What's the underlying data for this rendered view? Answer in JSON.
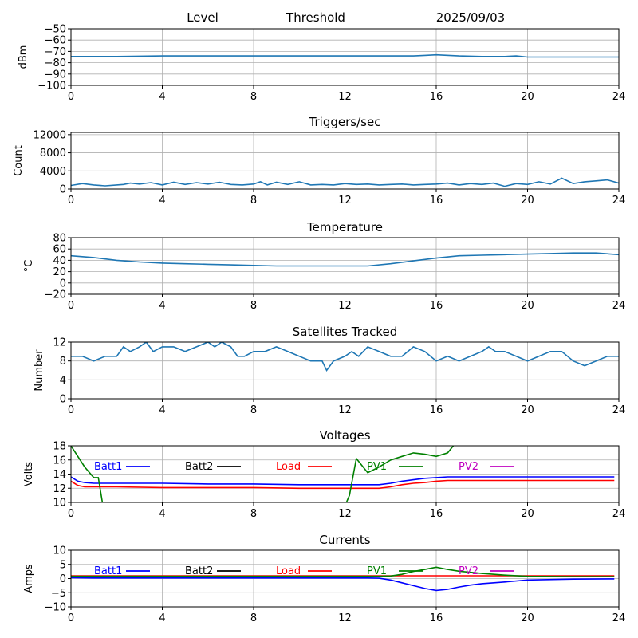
{
  "header": {
    "level": "Level",
    "threshold": "Threshold",
    "date": "2025/09/03"
  },
  "colors": {
    "series": "#1f77b4",
    "grid": "#b0b0b0",
    "Batt1": "#0000ff",
    "Batt2": "#000000",
    "Load": "#ff0000",
    "PV1": "#008000",
    "PV2": "#c000c0"
  },
  "chart_data": [
    {
      "type": "line",
      "title": "",
      "ylabel": "dBm",
      "xlim": [
        0,
        24
      ],
      "ylim": [
        -100,
        -50
      ],
      "xticks": [
        0,
        4,
        8,
        12,
        16,
        20,
        24
      ],
      "yticks": [
        -50,
        -60,
        -70,
        -80,
        -90,
        -100
      ],
      "x": [
        0,
        2,
        4,
        6,
        8,
        10,
        12,
        13,
        14,
        15,
        15.5,
        16,
        17,
        18,
        19,
        19.5,
        20,
        21,
        22,
        23,
        24
      ],
      "series": [
        {
          "values": [
            -74.5,
            -74.5,
            -74,
            -74,
            -74,
            -74,
            -74,
            -74,
            -74,
            -74,
            -73.5,
            -73,
            -74,
            -74.5,
            -74.5,
            -74,
            -75,
            -75,
            -75,
            -75,
            -75
          ]
        }
      ]
    },
    {
      "type": "line",
      "title": "Triggers/sec",
      "ylabel": "Count",
      "xlim": [
        0,
        24
      ],
      "ylim": [
        0,
        12500
      ],
      "xticks": [
        0,
        4,
        8,
        12,
        16,
        20,
        24
      ],
      "yticks": [
        0,
        4000,
        8000,
        12000
      ],
      "x": [
        0,
        0.5,
        1,
        1.5,
        2,
        2.3,
        2.6,
        3,
        3.5,
        4,
        4.5,
        5,
        5.5,
        6,
        6.5,
        7,
        7.5,
        8,
        8.3,
        8.6,
        9,
        9.5,
        10,
        10.5,
        11,
        11.5,
        12,
        12.5,
        13,
        13.5,
        14,
        14.5,
        15,
        15.5,
        16,
        16.5,
        17,
        17.5,
        18,
        18.5,
        19,
        19.5,
        20,
        20.5,
        21,
        21.5,
        22,
        22.5,
        23,
        23.5,
        24
      ],
      "series": [
        {
          "values": [
            800,
            1200,
            900,
            700,
            900,
            1000,
            1300,
            1100,
            1400,
            900,
            1500,
            1000,
            1400,
            1100,
            1500,
            1000,
            900,
            1100,
            1600,
            900,
            1500,
            1000,
            1600,
            900,
            1000,
            900,
            1200,
            1000,
            1100,
            900,
            1000,
            1100,
            900,
            1000,
            1100,
            1300,
            900,
            1200,
            1000,
            1300,
            600,
            1200,
            1000,
            1600,
            1100,
            2400,
            1200,
            1600,
            1800,
            2000,
            1300
          ]
        }
      ]
    },
    {
      "type": "line",
      "title": "Temperature",
      "ylabel": "°C",
      "xlim": [
        0,
        24
      ],
      "ylim": [
        -20,
        80
      ],
      "xticks": [
        0,
        4,
        8,
        12,
        16,
        20,
        24
      ],
      "yticks": [
        80,
        60,
        40,
        20,
        0,
        -20
      ],
      "x": [
        0,
        1,
        2,
        3,
        4,
        5,
        6,
        7,
        8,
        9,
        10,
        11,
        12,
        13,
        14,
        15,
        16,
        17,
        18,
        19,
        20,
        21,
        22,
        23,
        24
      ],
      "series": [
        {
          "values": [
            48,
            45,
            40,
            37,
            35,
            34,
            33,
            32,
            31,
            30,
            30,
            30,
            30,
            30,
            34,
            39,
            44,
            48,
            49,
            50,
            51,
            52,
            53,
            53,
            50
          ]
        }
      ]
    },
    {
      "type": "line",
      "title": "Satellites Tracked",
      "ylabel": "Number",
      "xlim": [
        0,
        24
      ],
      "ylim": [
        0,
        12
      ],
      "xticks": [
        0,
        4,
        8,
        12,
        16,
        20,
        24
      ],
      "yticks": [
        0,
        4,
        8,
        12
      ],
      "x": [
        0,
        0.5,
        1,
        1.5,
        2,
        2.3,
        2.6,
        3,
        3.3,
        3.6,
        4,
        4.5,
        5,
        5.5,
        6,
        6.3,
        6.6,
        7,
        7.3,
        7.6,
        8,
        8.5,
        9,
        9.5,
        10,
        10.5,
        11,
        11.2,
        11.5,
        12,
        12.3,
        12.6,
        13,
        13.5,
        14,
        14.5,
        15,
        15.5,
        16,
        16.5,
        17,
        17.5,
        18,
        18.3,
        18.6,
        19,
        19.5,
        20,
        20.5,
        21,
        21.5,
        22,
        22.5,
        23,
        23.5,
        24
      ],
      "series": [
        {
          "values": [
            9,
            9,
            8,
            9,
            9,
            11,
            10,
            11,
            12,
            10,
            11,
            11,
            10,
            11,
            12,
            11,
            12,
            11,
            9,
            9,
            10,
            10,
            11,
            10,
            9,
            8,
            8,
            6,
            8,
            9,
            10,
            9,
            11,
            10,
            9,
            9,
            11,
            10,
            8,
            9,
            8,
            9,
            10,
            11,
            10,
            10,
            9,
            8,
            9,
            10,
            10,
            8,
            7,
            8,
            9,
            9
          ]
        }
      ]
    },
    {
      "type": "line",
      "title": "Voltages",
      "ylabel": "Volts",
      "xlim": [
        0,
        24
      ],
      "ylim": [
        10,
        18
      ],
      "xticks": [
        0,
        4,
        8,
        12,
        16,
        20,
        24
      ],
      "yticks": [
        10,
        12,
        14,
        16,
        18
      ],
      "legend": [
        "Batt1",
        "Batt2",
        "Load",
        "PV1",
        "PV2"
      ],
      "x": [
        0,
        0.3,
        0.6,
        1,
        1.2,
        1.4,
        2,
        4,
        6,
        8,
        10,
        12,
        12.2,
        12.5,
        13,
        13.5,
        14,
        14.5,
        15,
        15.5,
        16,
        16.5,
        17,
        18,
        20,
        22,
        23.8
      ],
      "series": [
        {
          "name": "Batt1",
          "values": [
            13.6,
            13.0,
            12.8,
            12.7,
            12.7,
            12.7,
            12.7,
            12.7,
            12.6,
            12.6,
            12.5,
            12.5,
            12.5,
            12.5,
            12.5,
            12.5,
            12.7,
            13.0,
            13.2,
            13.4,
            13.5,
            13.6,
            13.6,
            13.6,
            13.6,
            13.6,
            13.6
          ]
        },
        {
          "name": "Load",
          "values": [
            13.0,
            12.4,
            12.2,
            12.2,
            12.2,
            12.2,
            12.2,
            12.1,
            12.1,
            12.1,
            12.0,
            12.0,
            12.0,
            12.0,
            12.0,
            12.0,
            12.2,
            12.5,
            12.7,
            12.8,
            13.0,
            13.1,
            13.1,
            13.1,
            13.1,
            13.1,
            13.1
          ]
        },
        {
          "name": "PV1",
          "values": [
            18,
            16.5,
            15,
            13.5,
            13.5,
            9.5,
            9.5,
            9.5,
            9.5,
            9.5,
            9.5,
            9.5,
            11,
            16.2,
            14.2,
            15,
            16,
            16.5,
            17,
            16.8,
            16.5,
            17,
            19,
            19,
            19,
            19,
            19
          ]
        }
      ]
    },
    {
      "type": "line",
      "title": "Currents",
      "ylabel": "Amps",
      "xlim": [
        0,
        24
      ],
      "ylim": [
        -10,
        10
      ],
      "xticks": [
        0,
        4,
        8,
        12,
        16,
        20,
        24
      ],
      "yticks": [
        -10,
        -5,
        0,
        5,
        10
      ],
      "legend": [
        "Batt1",
        "Batt2",
        "Load",
        "PV1",
        "PV2"
      ],
      "x": [
        0,
        1,
        2,
        4,
        6,
        8,
        10,
        12,
        13,
        13.5,
        14,
        14.5,
        15,
        15.5,
        16,
        16.5,
        17,
        17.5,
        18,
        19,
        20,
        22,
        23.8
      ],
      "series": [
        {
          "name": "Batt1",
          "values": [
            0.3,
            0.2,
            0.2,
            0.2,
            0.2,
            0.2,
            0.2,
            0.2,
            0.2,
            0.1,
            -0.5,
            -1.5,
            -2.5,
            -3.5,
            -4.2,
            -3.8,
            -3,
            -2.3,
            -1.8,
            -1.2,
            -0.5,
            -0.2,
            -0.1
          ]
        },
        {
          "name": "Load",
          "values": [
            1.0,
            1.0,
            1.0,
            1.0,
            1.0,
            1.0,
            1.0,
            1.0,
            1.0,
            1.0,
            1.0,
            1.0,
            1.0,
            1.0,
            1.0,
            1.0,
            1.0,
            1.0,
            1.0,
            1.0,
            1.0,
            1.0,
            1.0
          ]
        },
        {
          "name": "PV1",
          "values": [
            0.8,
            0.8,
            0.8,
            0.8,
            0.8,
            0.8,
            0.8,
            0.8,
            0.8,
            0.8,
            0.9,
            1.5,
            2.5,
            3.2,
            4.0,
            3.2,
            2.6,
            2.2,
            1.8,
            1.2,
            0.8,
            0.7,
            0.7
          ]
        }
      ]
    }
  ]
}
